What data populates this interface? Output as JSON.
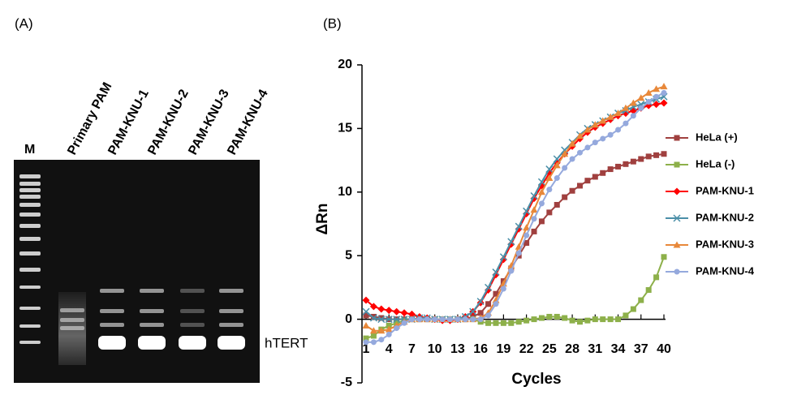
{
  "panels": {
    "a_label": "(A)",
    "b_label": "(B)"
  },
  "gel": {
    "lanes": [
      "M",
      "Primary PAM",
      "PAM-KNU-1",
      "PAM-KNU-2",
      "PAM-KNU-3",
      "PAM-KNU-4"
    ],
    "band_label": "hTERT"
  },
  "chart_data": {
    "type": "line",
    "x_label": "Cycles",
    "y_label": "ΔRn",
    "x": [
      1,
      2,
      3,
      4,
      5,
      6,
      7,
      8,
      9,
      10,
      11,
      12,
      13,
      14,
      15,
      16,
      17,
      18,
      19,
      20,
      21,
      22,
      23,
      24,
      25,
      26,
      27,
      28,
      29,
      30,
      31,
      32,
      33,
      34,
      35,
      36,
      37,
      38,
      39,
      40
    ],
    "xlim": [
      1,
      40
    ],
    "xticks": [
      1,
      4,
      7,
      10,
      13,
      16,
      19,
      22,
      25,
      28,
      31,
      34,
      37,
      40
    ],
    "ylim": [
      -5,
      20
    ],
    "yticks": [
      -5,
      0,
      5,
      10,
      15,
      20
    ],
    "legend": "right",
    "series": [
      {
        "name": "HeLa (+)",
        "color": "#a0403f",
        "marker": "square",
        "values": [
          0.3,
          0.2,
          0.1,
          0,
          0,
          0,
          0,
          0,
          0,
          0,
          0,
          0,
          0,
          0,
          0.2,
          0.5,
          1.2,
          2,
          3,
          4,
          5,
          6,
          6.9,
          7.7,
          8.4,
          9,
          9.6,
          10.1,
          10.5,
          10.9,
          11.2,
          11.5,
          11.8,
          12,
          12.2,
          12.4,
          12.6,
          12.8,
          12.9,
          13
        ]
      },
      {
        "name": "HeLa (-)",
        "color": "#8db04a",
        "marker": "square",
        "values": [
          -1.5,
          -1.3,
          -0.8,
          -0.5,
          -0.3,
          -0.1,
          0,
          0,
          0,
          0,
          0,
          0,
          0,
          0,
          0,
          -0.2,
          -0.3,
          -0.3,
          -0.3,
          -0.3,
          -0.2,
          -0.1,
          0,
          0.1,
          0.2,
          0.2,
          0.1,
          -0.1,
          -0.2,
          -0.1,
          0,
          0,
          0,
          0,
          0.3,
          0.8,
          1.5,
          2.3,
          3.3,
          4.9
        ]
      },
      {
        "name": "PAM-KNU-1",
        "color": "#ff0000",
        "marker": "diamond",
        "values": [
          1.5,
          1,
          0.8,
          0.7,
          0.6,
          0.5,
          0.4,
          0.2,
          0.1,
          0,
          -0.1,
          -0.1,
          0,
          0.2,
          0.6,
          1.3,
          2.3,
          3.5,
          4.7,
          5.9,
          7.1,
          8.3,
          9.5,
          10.5,
          11.5,
          12.3,
          13,
          13.6,
          14.2,
          14.7,
          15.1,
          15.4,
          15.7,
          16,
          16.2,
          16.4,
          16.6,
          16.8,
          16.9,
          17
        ]
      },
      {
        "name": "PAM-KNU-2",
        "color": "#4b8fa8",
        "marker": "cross",
        "values": [
          0.6,
          0.1,
          0,
          0,
          0,
          0,
          0,
          0.1,
          0.1,
          0,
          0,
          0,
          0,
          0.2,
          0.6,
          1.4,
          2.5,
          3.7,
          4.9,
          6.1,
          7.3,
          8.5,
          9.7,
          10.8,
          11.8,
          12.6,
          13.3,
          13.9,
          14.5,
          15,
          15.3,
          15.6,
          15.9,
          16.2,
          16.4,
          16.7,
          16.9,
          17.1,
          17.3,
          17.5
        ]
      },
      {
        "name": "PAM-KNU-3",
        "color": "#e8883a",
        "marker": "triangle",
        "values": [
          -0.5,
          -0.9,
          -0.9,
          -0.8,
          -0.5,
          -0.2,
          0,
          0,
          0,
          0,
          0,
          0,
          0,
          0,
          0,
          0.1,
          0.5,
          1.5,
          2.8,
          4.2,
          5.7,
          7.2,
          8.6,
          10,
          11.1,
          12.1,
          13,
          13.8,
          14.4,
          14.9,
          15.3,
          15.6,
          15.9,
          16.2,
          16.6,
          17,
          17.4,
          17.8,
          18.1,
          18.3
        ]
      },
      {
        "name": "PAM-KNU-4",
        "color": "#95a9dd",
        "marker": "circle",
        "values": [
          -1.8,
          -1.8,
          -1.6,
          -1.2,
          -0.7,
          -0.3,
          0,
          0,
          0,
          0,
          0,
          0,
          0,
          0,
          0,
          0,
          0.3,
          1.2,
          2.4,
          3.8,
          5.2,
          6.6,
          7.9,
          9.1,
          10.2,
          11.1,
          11.9,
          12.6,
          13.1,
          13.5,
          13.9,
          14.2,
          14.5,
          14.9,
          15.4,
          16,
          16.6,
          17.1,
          17.5,
          17.8
        ]
      }
    ]
  }
}
